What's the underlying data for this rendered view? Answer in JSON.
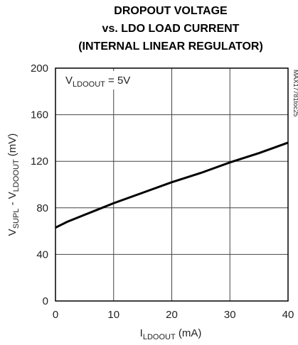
{
  "chart_data": {
    "type": "line",
    "title": [
      "DROPOUT VOLTAGE",
      "vs. LDO LOAD CURRENT",
      "(INTERNAL LINEAR REGULATOR)"
    ],
    "xlabel": [
      "I",
      "LDOOUT",
      " (mA)"
    ],
    "ylabel": [
      "V",
      "SUPL",
      " - V",
      "LDOOUT",
      " (mV)"
    ],
    "annotation": [
      "V",
      "LDOOUT",
      " = 5V"
    ],
    "side_label": "MAX17781toc25",
    "x": [
      0,
      2,
      5,
      8,
      10,
      15,
      20,
      25,
      30,
      35,
      40
    ],
    "series": [
      {
        "color": "#000000",
        "values": [
          63,
          68,
          74,
          80,
          84,
          93,
          102,
          110,
          119,
          127,
          136
        ]
      }
    ],
    "xlim": [
      0,
      40
    ],
    "xticks": [
      0,
      10,
      20,
      30,
      40
    ],
    "ylim": [
      0,
      200
    ],
    "yticks": [
      0,
      40,
      80,
      120,
      160,
      200
    ],
    "grid": true
  }
}
